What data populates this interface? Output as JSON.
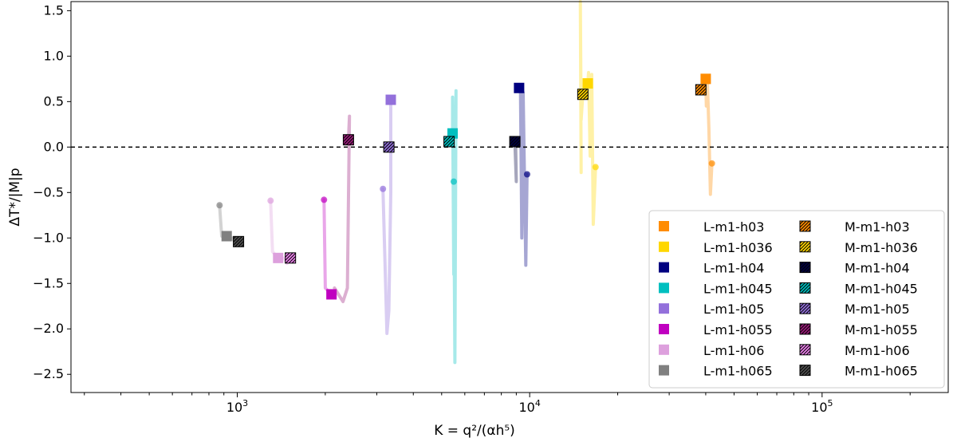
{
  "chart_data": {
    "type": "scatter",
    "title": "",
    "xlabel": "K = q²/(αh⁵)",
    "ylabel": "ΔT*/|M|p",
    "xscale": "log",
    "xlim": [
      270,
      270000
    ],
    "ylim": [
      -2.7,
      1.6
    ],
    "x_ticks": [
      {
        "value": 1000,
        "base": "10",
        "exp": "3"
      },
      {
        "value": 10000,
        "base": "10",
        "exp": "4"
      },
      {
        "value": 100000,
        "base": "10",
        "exp": "5"
      }
    ],
    "y_ticks": [
      {
        "value": 1.5,
        "label": "1.5"
      },
      {
        "value": 1.0,
        "label": "1.0"
      },
      {
        "value": 0.5,
        "label": "0.5"
      },
      {
        "value": 0.0,
        "label": "0.0"
      },
      {
        "value": -0.5,
        "label": "−0.5"
      },
      {
        "value": -1.0,
        "label": "−1.0"
      },
      {
        "value": -1.5,
        "label": "−1.5"
      },
      {
        "value": -2.0,
        "label": "−2.0"
      },
      {
        "value": -2.5,
        "label": "−2.5"
      }
    ],
    "reference_line": {
      "y": 0,
      "style": "dashed"
    },
    "legend_position": "lower-right",
    "series": [
      {
        "name": "L-m1-h03",
        "color": "#ff8c00",
        "hatched": false,
        "K": 40000,
        "final": 0.75,
        "start": -0.18,
        "trail": [
          [
            42000,
            -0.18
          ],
          [
            41500,
            -0.52
          ],
          [
            41000,
            0.2
          ],
          [
            40500,
            0.75
          ],
          [
            40200,
            0.45
          ],
          [
            40000,
            0.75
          ]
        ]
      },
      {
        "name": "L-m1-h036",
        "color": "#ffd700",
        "hatched": false,
        "K": 15800,
        "final": 0.7,
        "start": -0.22,
        "trail": [
          [
            16800,
            -0.22
          ],
          [
            16500,
            -0.85
          ],
          [
            16300,
            0.8
          ],
          [
            16100,
            -0.1
          ],
          [
            15900,
            0.82
          ],
          [
            15800,
            0.7
          ]
        ]
      },
      {
        "name": "L-m1-h04",
        "color": "#000080",
        "hatched": false,
        "K": 9200,
        "final": 0.65,
        "start": -0.3,
        "trail": [
          [
            9800,
            -0.3
          ],
          [
            9700,
            -1.3
          ],
          [
            9500,
            0.6
          ],
          [
            9400,
            -1.0
          ],
          [
            9300,
            0.68
          ],
          [
            9200,
            0.65
          ]
        ]
      },
      {
        "name": "L-m1-h045",
        "color": "#00bfbf",
        "hatched": false,
        "K": 5450,
        "final": 0.15,
        "start": -0.38,
        "trail": [
          [
            5500,
            -0.38
          ],
          [
            5550,
            -2.37
          ],
          [
            5600,
            0.62
          ],
          [
            5500,
            -1.4
          ],
          [
            5450,
            0.55
          ],
          [
            5450,
            0.15
          ]
        ]
      },
      {
        "name": "L-m1-h05",
        "color": "#9370db",
        "hatched": false,
        "K": 3350,
        "final": 0.52,
        "start": -0.46,
        "trail": [
          [
            3150,
            -0.46
          ],
          [
            3250,
            -2.05
          ],
          [
            3300,
            -1.8
          ],
          [
            3350,
            -0.5
          ],
          [
            3350,
            0.52
          ]
        ]
      },
      {
        "name": "L-m1-h055",
        "color": "#c000c0",
        "hatched": false,
        "K": 2100,
        "final": -1.62,
        "start": -0.58,
        "trail": [
          [
            1980,
            -0.58
          ],
          [
            2000,
            -1.55
          ],
          [
            2100,
            -1.62
          ]
        ]
      },
      {
        "name": "L-m1-h06",
        "color": "#dda0dd",
        "hatched": false,
        "K": 1380,
        "final": -1.22,
        "start": -0.59,
        "trail": [
          [
            1300,
            -0.59
          ],
          [
            1320,
            -1.15
          ],
          [
            1380,
            -1.22
          ]
        ]
      },
      {
        "name": "L-m1-h065",
        "color": "#808080",
        "hatched": false,
        "K": 920,
        "final": -0.98,
        "start": -0.64,
        "trail": [
          [
            870,
            -0.64
          ],
          [
            885,
            -0.98
          ],
          [
            920,
            -0.98
          ]
        ]
      },
      {
        "name": "M-m1-h03",
        "color": "#ff8c00",
        "hatched": true,
        "K": 38500,
        "final": 0.63,
        "trail": [
          [
            39000,
            0.6
          ],
          [
            38500,
            0.63
          ]
        ]
      },
      {
        "name": "M-m1-h036",
        "color": "#ffd700",
        "hatched": true,
        "K": 15200,
        "final": 0.58,
        "trail": [
          [
            15000,
            -0.28
          ],
          [
            14900,
            1.6
          ],
          [
            15000,
            0.3
          ],
          [
            15200,
            0.58
          ]
        ]
      },
      {
        "name": "M-m1-h04",
        "color": "#000040",
        "hatched": true,
        "K": 8900,
        "final": 0.06,
        "trail": [
          [
            8950,
            0.06
          ],
          [
            9000,
            -0.38
          ],
          [
            8900,
            0.06
          ]
        ]
      },
      {
        "name": "M-m1-h045",
        "color": "#00bfbf",
        "hatched": true,
        "K": 5300,
        "final": 0.06,
        "trail": [
          [
            5350,
            0.1
          ],
          [
            5300,
            0.06
          ]
        ]
      },
      {
        "name": "M-m1-h05",
        "color": "#9370db",
        "hatched": true,
        "K": 3300,
        "final": 0.0,
        "trail": [
          [
            3280,
            0.0
          ],
          [
            3300,
            0.0
          ]
        ]
      },
      {
        "name": "M-m1-h055",
        "color": "#9b1b7a",
        "hatched": true,
        "K": 2400,
        "final": 0.08,
        "trail": [
          [
            2150,
            -1.55
          ],
          [
            2300,
            -1.7
          ],
          [
            2380,
            -1.55
          ],
          [
            2420,
            0.34
          ],
          [
            2400,
            0.08
          ]
        ]
      },
      {
        "name": "M-m1-h06",
        "color": "#ee82ee",
        "hatched": true,
        "K": 1520,
        "final": -1.22,
        "trail": [
          [
            1450,
            -1.22
          ],
          [
            1480,
            -1.28
          ],
          [
            1520,
            -1.22
          ]
        ]
      },
      {
        "name": "M-m1-h065",
        "color": "#505050",
        "hatched": true,
        "K": 1010,
        "final": -1.04,
        "trail": [
          [
            960,
            -1.0
          ],
          [
            990,
            -1.06
          ],
          [
            1010,
            -1.04
          ]
        ]
      }
    ]
  }
}
